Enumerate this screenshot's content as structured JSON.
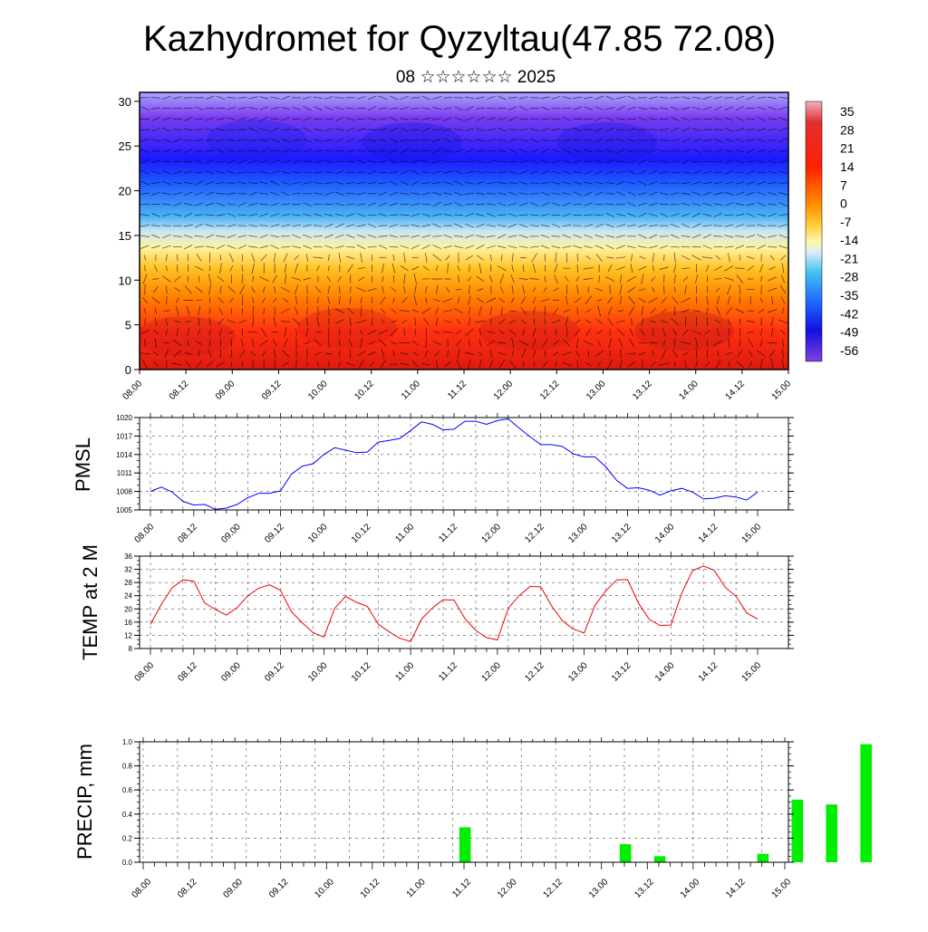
{
  "title": "Kazhydromet for Qyzyltau(47.85 72.08)",
  "subtitle": "08 ☆☆☆☆☆☆ 2025",
  "chart_data": [
    {
      "type": "heatmap",
      "name": "cross-section",
      "xlabel": "",
      "ylabel": "",
      "x_ticks": [
        "08.00",
        "08.12",
        "09.00",
        "09.12",
        "10.00",
        "10.12",
        "11.00",
        "11.12",
        "12.00",
        "12.12",
        "13.00",
        "13.12",
        "14.00",
        "14.12",
        "15.00"
      ],
      "y_ticks": [
        "0",
        "5",
        "10",
        "15",
        "20",
        "25",
        "30"
      ],
      "ylim": [
        0,
        31
      ],
      "colorbar_ticks": [
        "35",
        "28",
        "21",
        "14",
        "7",
        "0",
        "-7",
        "-14",
        "-21",
        "-28",
        "-35",
        "-42",
        "-49",
        "-56"
      ],
      "colorbar_range": [
        -63,
        42
      ],
      "wind_vectors": true
    },
    {
      "type": "line",
      "name": "PMSL",
      "ylabel": "PMSL",
      "y_ticks": [
        "1005",
        "1008",
        "1011",
        "1014",
        "1017",
        "1020"
      ],
      "ylim": [
        1005,
        1020
      ],
      "x_ticks": [
        "08.00",
        "08.12",
        "09.00",
        "09.12",
        "10.00",
        "10.12",
        "11.00",
        "11.12",
        "12.00",
        "12.12",
        "13.00",
        "13.12",
        "14.00",
        "14.12",
        "15.00"
      ],
      "color": "#0000ff",
      "values": [
        1008.0,
        1008.7,
        1007.9,
        1006.4,
        1005.8,
        1005.9,
        1005.1,
        1005.3,
        1005.9,
        1007.0,
        1007.7,
        1007.7,
        1008.1,
        1010.8,
        1012.1,
        1012.5,
        1014.0,
        1015.1,
        1014.7,
        1014.3,
        1014.4,
        1016.0,
        1016.3,
        1016.6,
        1017.9,
        1019.3,
        1018.9,
        1018.0,
        1018.1,
        1019.4,
        1019.4,
        1018.9,
        1019.5,
        1019.8,
        1018.3,
        1016.9,
        1015.6,
        1015.6,
        1015.3,
        1014.1,
        1013.6,
        1013.6,
        1012.0,
        1009.8,
        1008.5,
        1008.6,
        1008.2,
        1007.4,
        1008.1,
        1008.5,
        1007.9,
        1006.8,
        1006.9,
        1007.3,
        1007.1,
        1006.6,
        1007.9
      ]
    },
    {
      "type": "line",
      "name": "TEMP at 2 M",
      "ylabel": "TEMP at 2 M",
      "y_ticks": [
        "8",
        "12",
        "16",
        "20",
        "24",
        "28",
        "32",
        "36"
      ],
      "ylim": [
        8,
        36
      ],
      "x_ticks": [
        "08.00",
        "08.12",
        "09.00",
        "09.12",
        "10.00",
        "10.12",
        "11.00",
        "11.12",
        "12.00",
        "12.12",
        "13.00",
        "13.12",
        "14.00",
        "14.12",
        "15.00"
      ],
      "color": "#ee0000",
      "values": [
        15.3,
        21.4,
        26.4,
        28.8,
        28.4,
        21.8,
        19.8,
        18.1,
        20.4,
        24.0,
        26.3,
        27.3,
        25.6,
        19.2,
        15.8,
        12.8,
        11.5,
        20.2,
        23.8,
        22.0,
        20.8,
        15.4,
        13.1,
        11.1,
        10.1,
        16.9,
        20.3,
        22.8,
        22.7,
        17.1,
        13.5,
        11.3,
        10.6,
        20.2,
        24.0,
        26.8,
        26.7,
        20.9,
        16.4,
        13.9,
        12.7,
        21.1,
        25.5,
        28.8,
        28.9,
        21.8,
        16.8,
        15.0,
        15.1,
        24.8,
        31.6,
        33.0,
        31.7,
        26.6,
        23.8,
        18.8,
        16.9
      ]
    },
    {
      "type": "bar",
      "name": "PRECIP, mm",
      "ylabel": "PRECIP, mm",
      "y_ticks": [
        "0.0",
        "0.2",
        "0.4",
        "0.6",
        "0.8",
        "1.0"
      ],
      "ylim": [
        0,
        1.0
      ],
      "x_ticks": [
        "08.00",
        "08.12",
        "09.00",
        "09.12",
        "10.00",
        "10.12",
        "11.00",
        "11.12",
        "12.00",
        "12.12",
        "13.00",
        "13.12",
        "14.00",
        "14.12",
        "15.00"
      ],
      "color": "#00ee00",
      "bars": [
        {
          "t": 20,
          "value": 0.29
        },
        {
          "t": 34,
          "value": 0.15
        },
        {
          "t": 37,
          "value": 0.05
        },
        {
          "t": 46,
          "value": 0.07
        },
        {
          "t": 49,
          "value": 0.52
        },
        {
          "t": 52,
          "value": 0.48
        },
        {
          "t": 55,
          "value": 0.98
        }
      ]
    }
  ]
}
